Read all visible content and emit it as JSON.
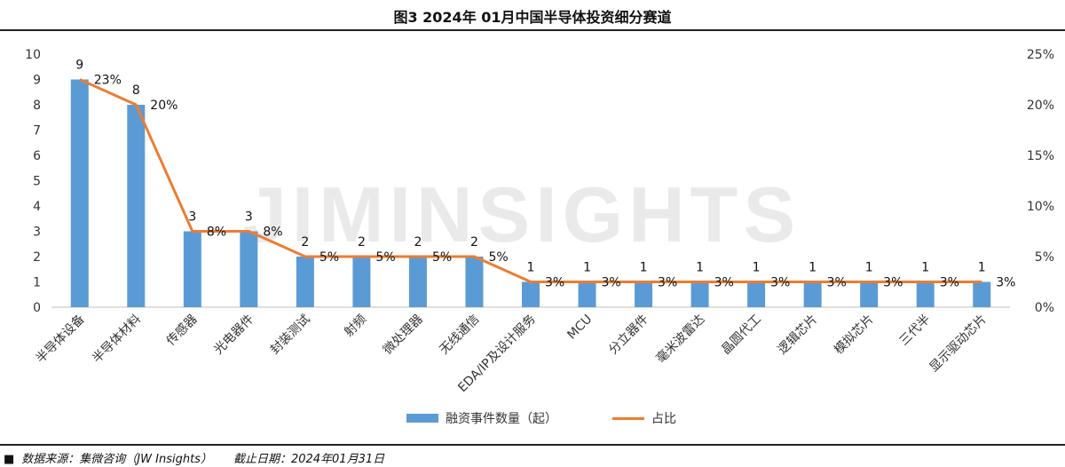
{
  "title": "图3  2024年 01月中国半导体投资细分赛道",
  "footer": {
    "source": "数据来源：集微咨询（JW Insights）",
    "date": "截止日期：2024年01月31日"
  },
  "watermark": "JIMINSIGHTS",
  "colors": {
    "bar": "#5B9BD5",
    "line": "#ED7D31"
  },
  "chart_data": {
    "type": "bar",
    "categories": [
      "半导体设备",
      "半导体材料",
      "传感器",
      "光电器件",
      "封装测试",
      "射频",
      "微处理器",
      "无线通信",
      "EDA/IP及设计服务",
      "MCU",
      "分立器件",
      "毫米波雷达",
      "晶圆代工",
      "逻辑芯片",
      "模拟芯片",
      "三代半",
      "显示驱动芯片"
    ],
    "series": [
      {
        "name": "融资事件数量（起）",
        "type": "bar",
        "axis": "left",
        "values": [
          9,
          8,
          3,
          3,
          2,
          2,
          2,
          2,
          1,
          1,
          1,
          1,
          1,
          1,
          1,
          1,
          1
        ],
        "labels": [
          "9",
          "8",
          "3",
          "3",
          "2",
          "2",
          "2",
          "2",
          "1",
          "1",
          "1",
          "1",
          "1",
          "1",
          "1",
          "1",
          "1"
        ]
      },
      {
        "name": "占比",
        "type": "line",
        "axis": "right",
        "values": [
          22.5,
          20,
          7.5,
          7.5,
          5,
          5,
          5,
          5,
          2.5,
          2.5,
          2.5,
          2.5,
          2.5,
          2.5,
          2.5,
          2.5,
          2.5
        ],
        "labels": [
          "23%",
          "20%",
          "8%",
          "8%",
          "5%",
          "5%",
          "5%",
          "5%",
          "3%",
          "3%",
          "3%",
          "3%",
          "3%",
          "3%",
          "3%",
          "3%",
          "3%"
        ]
      }
    ],
    "y_left": {
      "min": 0,
      "max": 10,
      "ticks": [
        "0",
        "1",
        "2",
        "3",
        "4",
        "5",
        "6",
        "7",
        "8",
        "9",
        "10"
      ]
    },
    "y_right": {
      "min": 0,
      "max": 25,
      "ticks": [
        "0%",
        "5%",
        "10%",
        "15%",
        "20%",
        "25%"
      ]
    },
    "grid": false,
    "legend": "bottom"
  }
}
